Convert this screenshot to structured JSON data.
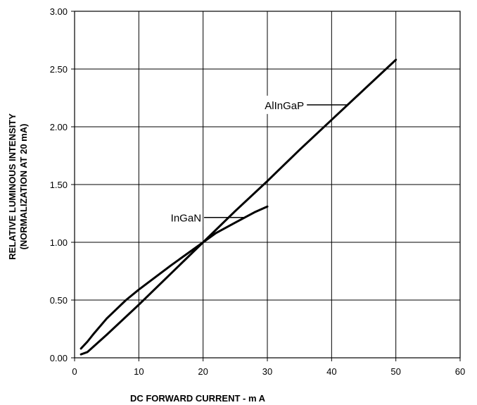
{
  "chart_data": {
    "type": "line",
    "title": "",
    "xlabel": "DC FORWARD CURRENT - m A",
    "ylabel": [
      "RELATIVE LUMINOUS INTENSITY",
      "(NORMALIZATION AT 20 mA)"
    ],
    "xlim": [
      0,
      60
    ],
    "ylim": [
      0,
      3
    ],
    "x_ticks": [
      0,
      10,
      20,
      30,
      40,
      50,
      60
    ],
    "x_tick_labels": [
      "0",
      "10",
      "20",
      "30",
      "40",
      "50",
      "60"
    ],
    "y_ticks": [
      0,
      0.5,
      1.0,
      1.5,
      2.0,
      2.5,
      3.0
    ],
    "y_tick_labels": [
      "0.00",
      "0.50",
      "1.00",
      "1.50",
      "2.00",
      "2.50",
      "3.00"
    ],
    "grid": true,
    "series": [
      {
        "name": "AlInGaP",
        "x": [
          1,
          2,
          3,
          5,
          10,
          15,
          20,
          25,
          30,
          35,
          40,
          45,
          50
        ],
        "y": [
          0.03,
          0.05,
          0.1,
          0.2,
          0.46,
          0.73,
          1.0,
          1.27,
          1.53,
          1.8,
          2.06,
          2.32,
          2.58
        ]
      },
      {
        "name": "InGaN",
        "x": [
          1,
          2,
          3,
          5,
          8,
          10,
          15,
          20,
          22,
          25,
          28,
          30
        ],
        "y": [
          0.08,
          0.14,
          0.21,
          0.34,
          0.5,
          0.59,
          0.8,
          1.0,
          1.08,
          1.17,
          1.26,
          1.31
        ]
      }
    ],
    "annotations": [
      {
        "text": "AlInGaP",
        "target_series": "AlInGaP",
        "target_x": 42.5
      },
      {
        "text": "InGaN",
        "target_series": "InGaN",
        "target_x": 26.5
      }
    ]
  }
}
